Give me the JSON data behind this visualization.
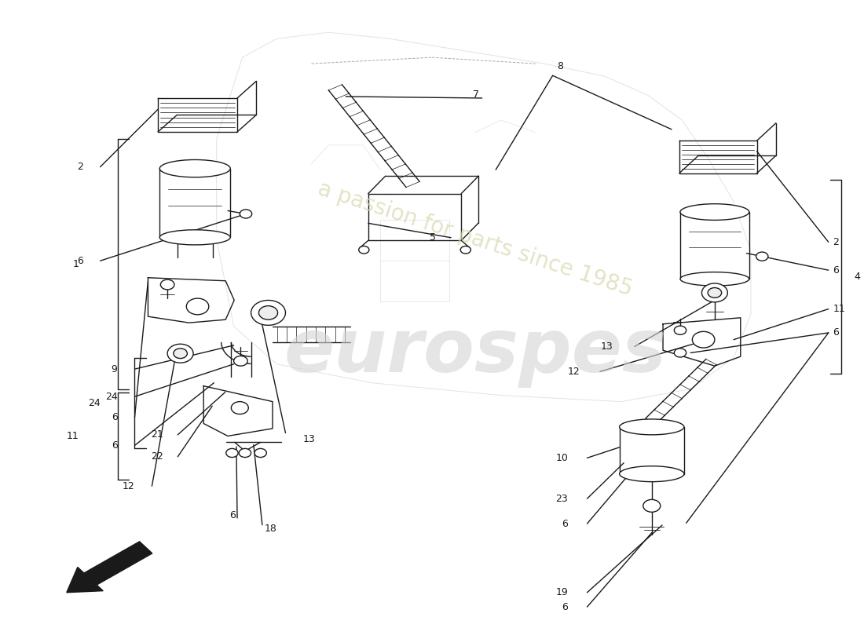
{
  "bg": "#ffffff",
  "lc": "#1a1a1a",
  "fig_w": 11.0,
  "fig_h": 8.0,
  "dpi": 100,
  "lw": 1.0,
  "fs_label": 9,
  "watermark1": "eurospes",
  "watermark2": "a passion for parts since 1985",
  "bracket_left_1": [
    0.135,
    0.22,
    0.62,
    0.09,
    "1"
  ],
  "bracket_left_11": [
    0.135,
    0.625,
    0.765,
    0.09,
    "11"
  ],
  "bracket_left_24": [
    0.155,
    0.57,
    0.715,
    0.115,
    "24"
  ],
  "bracket_right_4": [
    0.975,
    0.285,
    0.595,
    0.99,
    "4"
  ]
}
